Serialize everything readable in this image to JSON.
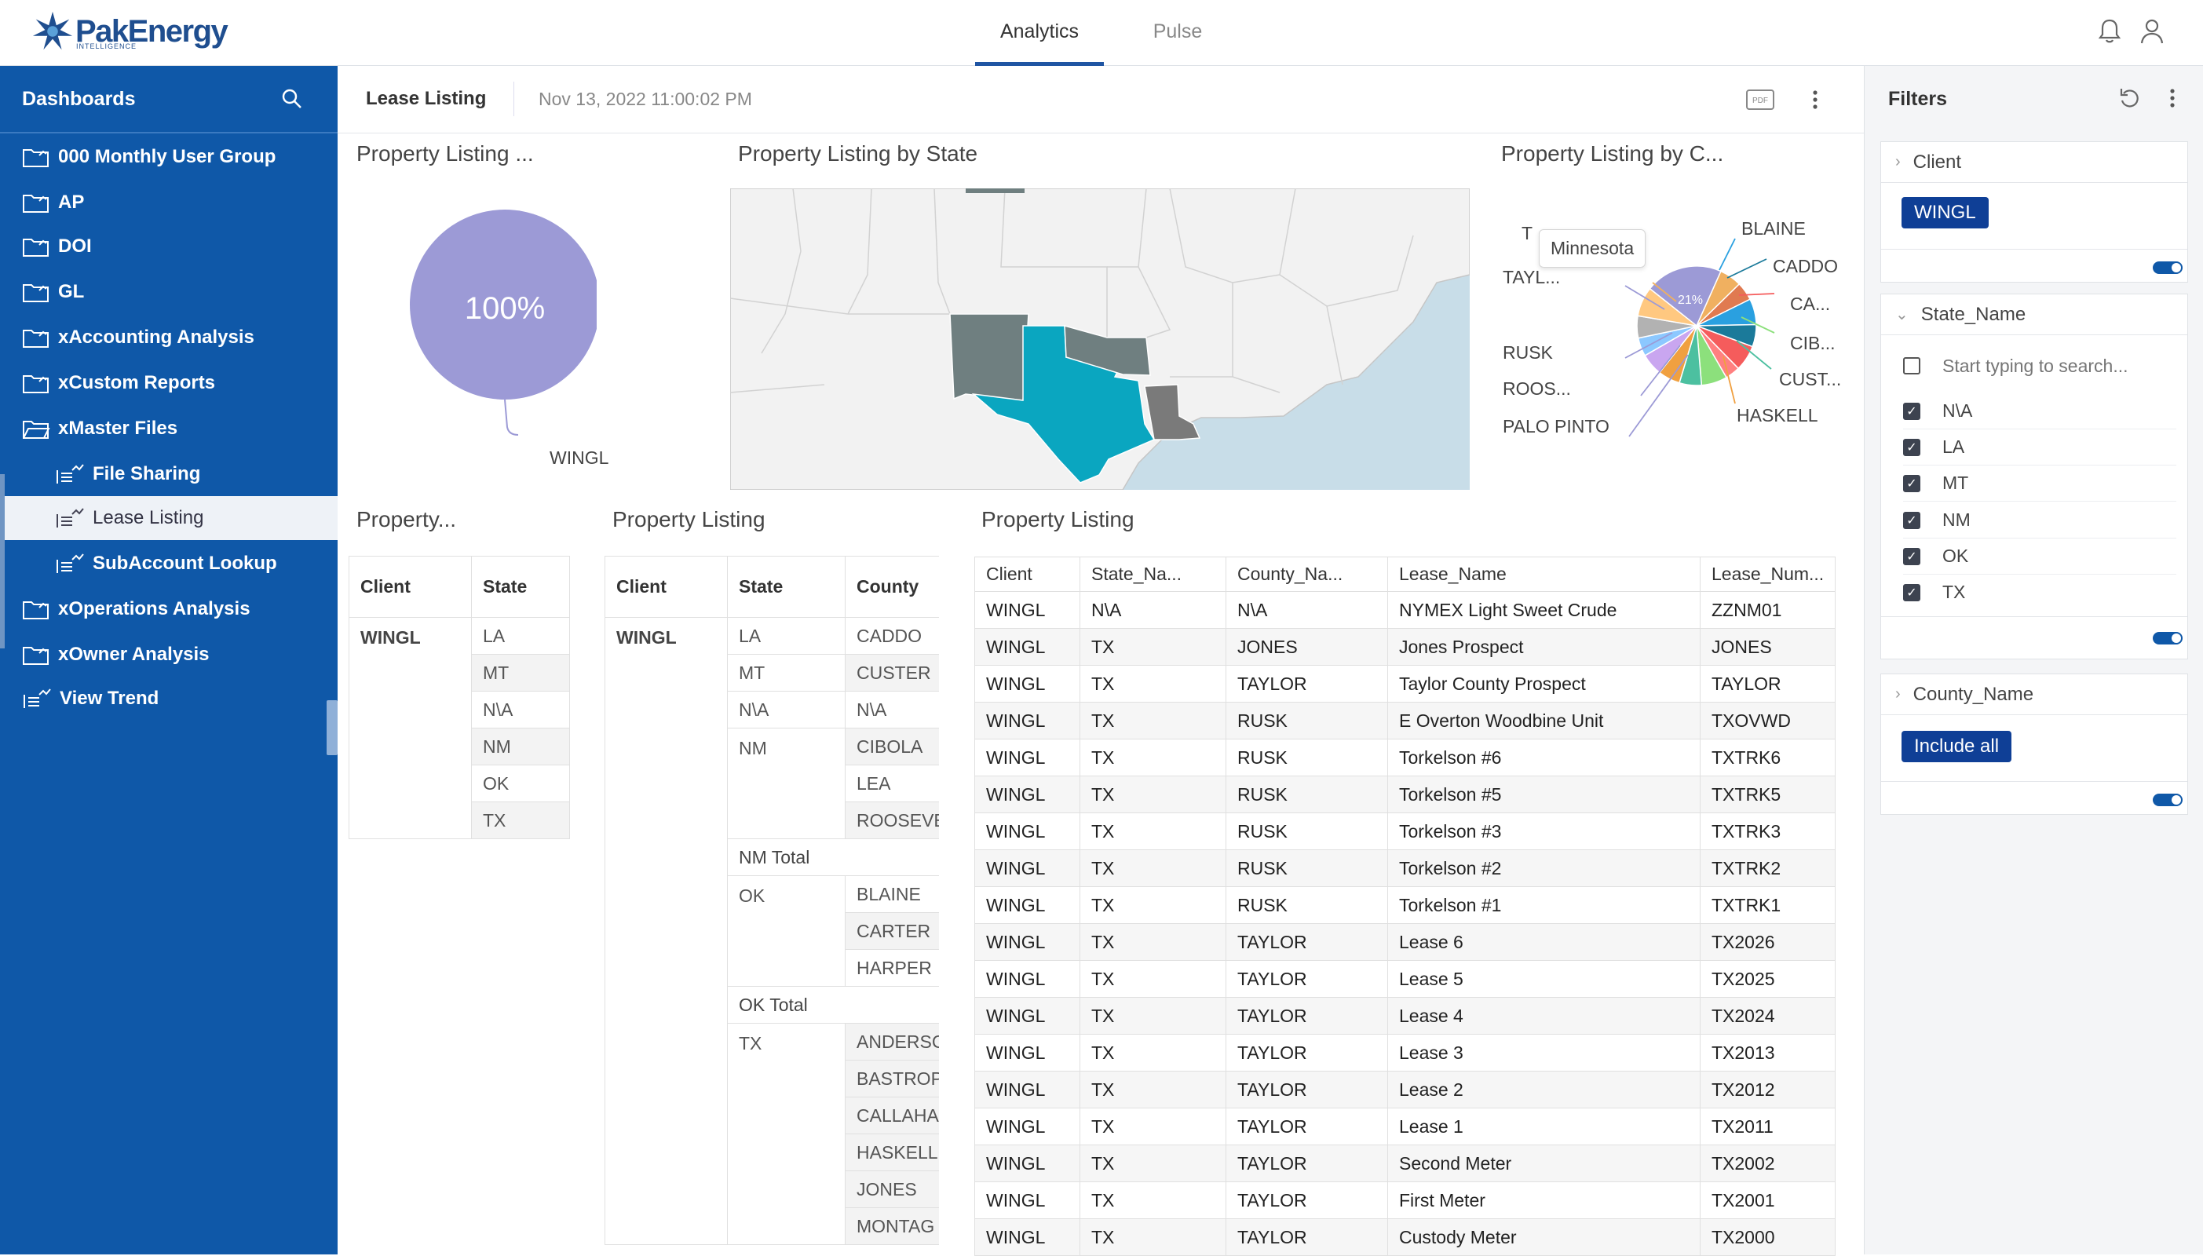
{
  "header": {
    "brand": "PakEnergy",
    "brand_sub": "INTELLIGENCE",
    "tabs": [
      "Analytics",
      "Pulse"
    ],
    "active_tab": "Analytics"
  },
  "sidebar": {
    "title": "Dashboards",
    "items": [
      {
        "label": "000 Monthly User Group"
      },
      {
        "label": "AP"
      },
      {
        "label": "DOI"
      },
      {
        "label": "GL"
      },
      {
        "label": "xAccounting Analysis"
      },
      {
        "label": "xCustom Reports"
      },
      {
        "label": "xMaster Files"
      },
      {
        "label": "File Sharing"
      },
      {
        "label": "Lease Listing"
      },
      {
        "label": "SubAccount Lookup"
      },
      {
        "label": "xOperations Analysis"
      },
      {
        "label": "xOwner Analysis"
      },
      {
        "label": "View Trend"
      }
    ]
  },
  "subheader": {
    "title": "Lease Listing",
    "timestamp": "Nov 13, 2022 11:00:02 PM",
    "pdf": "PDF"
  },
  "widgets": {
    "w1": {
      "title": "Property Listing ...",
      "slice_pct": "100%",
      "slice_label": "WINGL"
    },
    "w2": {
      "title": "Property Listing by State"
    },
    "w3": {
      "title": "Property Listing by C...",
      "tooltip": "Minnesota",
      "center_pct": "21%",
      "labels": [
        "BLAINE",
        "CADDO",
        "CA...",
        "CIB...",
        "CUST...",
        "HASKELL",
        "PALO PINTO",
        "ROOS...",
        "RUSK",
        "TAYL...",
        "T"
      ]
    },
    "w4": {
      "title": "Property...",
      "headers": [
        "Client",
        "State"
      ],
      "client": "WINGL",
      "states": [
        "LA",
        "MT",
        "N\\A",
        "NM",
        "OK",
        "TX"
      ]
    },
    "w5": {
      "title": "Property Listing",
      "headers": [
        "Client",
        "State",
        "County"
      ],
      "client": "WINGL",
      "la": "LA",
      "la_c": "CADDO",
      "mt": "MT",
      "mt_c": "CUSTER",
      "na": "N\\A",
      "na_c": "N\\A",
      "nm": "NM",
      "nm_c": [
        "CIBOLA",
        "LEA",
        "ROOSEVE"
      ],
      "nm_total": "NM Total",
      "ok": "OK",
      "ok_c": [
        "BLAINE",
        "CARTER",
        "HARPER"
      ],
      "ok_total": "OK Total",
      "tx": "TX",
      "tx_c": [
        "ANDERSC",
        "BASTROP",
        "CALLAHAI",
        "HASKELL",
        "JONES",
        "MONTAG"
      ]
    },
    "w6": {
      "title": "Property Listing",
      "headers": [
        "Client",
        "State_Na...",
        "County_Na...",
        "Lease_Name",
        "Lease_Num..."
      ],
      "rows": [
        [
          "WINGL",
          "N\\A",
          "N\\A",
          "NYMEX Light Sweet Crude",
          "ZZNM01"
        ],
        [
          "WINGL",
          "TX",
          "JONES",
          "Jones Prospect",
          "JONES"
        ],
        [
          "WINGL",
          "TX",
          "TAYLOR",
          "Taylor County Prospect",
          "TAYLOR"
        ],
        [
          "WINGL",
          "TX",
          "RUSK",
          "E Overton Woodbine Unit",
          "TXOVWD"
        ],
        [
          "WINGL",
          "TX",
          "RUSK",
          "Torkelson #6",
          "TXTRK6"
        ],
        [
          "WINGL",
          "TX",
          "RUSK",
          "Torkelson #5",
          "TXTRK5"
        ],
        [
          "WINGL",
          "TX",
          "RUSK",
          "Torkelson #3",
          "TXTRK3"
        ],
        [
          "WINGL",
          "TX",
          "RUSK",
          "Torkelson #2",
          "TXTRK2"
        ],
        [
          "WINGL",
          "TX",
          "RUSK",
          "Torkelson #1",
          "TXTRK1"
        ],
        [
          "WINGL",
          "TX",
          "TAYLOR",
          "Lease 6",
          "TX2026"
        ],
        [
          "WINGL",
          "TX",
          "TAYLOR",
          "Lease 5",
          "TX2025"
        ],
        [
          "WINGL",
          "TX",
          "TAYLOR",
          "Lease 4",
          "TX2024"
        ],
        [
          "WINGL",
          "TX",
          "TAYLOR",
          "Lease 3",
          "TX2013"
        ],
        [
          "WINGL",
          "TX",
          "TAYLOR",
          "Lease 2",
          "TX2012"
        ],
        [
          "WINGL",
          "TX",
          "TAYLOR",
          "Lease 1",
          "TX2011"
        ],
        [
          "WINGL",
          "TX",
          "TAYLOR",
          "Second Meter",
          "TX2002"
        ],
        [
          "WINGL",
          "TX",
          "TAYLOR",
          "First Meter",
          "TX2001"
        ],
        [
          "WINGL",
          "TX",
          "TAYLOR",
          "Custody Meter",
          "TX2000"
        ]
      ]
    }
  },
  "filters": {
    "title": "Filters",
    "client": {
      "label": "Client",
      "value": "WINGL"
    },
    "state": {
      "label": "State_Name",
      "search_placeholder": "Start typing to search...",
      "options": [
        "N\\A",
        "LA",
        "MT",
        "NM",
        "OK",
        "TX"
      ]
    },
    "county": {
      "label": "County_Name",
      "value": "Include all"
    }
  },
  "colors": {
    "sidebar": "#0f58a8",
    "accent": "#1f55a3",
    "chip": "#0f3f96",
    "pie_main": "#9c9ad6",
    "map_tx": "#0aa6c0",
    "map_gray": "#6f7f80",
    "map_la": "#7a7a7a",
    "sea": "#c8dde8"
  }
}
